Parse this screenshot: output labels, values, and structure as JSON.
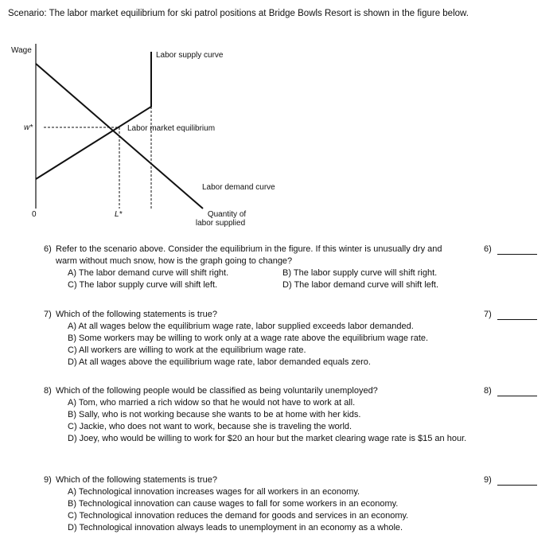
{
  "scenario": "Scenario: The labor market equilibrium for ski patrol positions at Bridge Bowls Resort is shown in the figure below.",
  "figure": {
    "y_axis_label": "Wage",
    "wage_label": "w*",
    "origin_label": "0",
    "quantity_label": "L*",
    "supply_label": "Labor supply curve",
    "equilibrium_label": "Labor market equilibrium",
    "demand_label": "Labor demand curve",
    "x_axis_label": [
      "Quantity of",
      "labor supplied"
    ]
  },
  "questions": [
    {
      "number": "6)",
      "stem": "Refer to the scenario above. Consider the equilibrium in the figure. If this winter is unusually dry and warm without much snow, how is the graph going to change?",
      "options": [
        "A) The labor demand curve will shift right.",
        "B) The labor supply curve will shift right.",
        "C) The labor supply curve will shift left.",
        "D) The labor demand curve will shift left."
      ],
      "answer_marker": "6)"
    },
    {
      "number": "7)",
      "stem": "Which of the following statements is true?",
      "options": [
        "A) At all wages below the equilibrium wage rate, labor supplied exceeds labor demanded.",
        "B) Some workers may be willing to work only at a wage rate above the equilibrium wage rate.",
        "C) All workers are willing to work at the equilibrium wage rate.",
        "D) At all wages above the equilibrium wage rate, labor demanded equals zero."
      ],
      "answer_marker": "7)"
    },
    {
      "number": "8)",
      "stem": "Which of the following people would be classified as being voluntarily unemployed?",
      "options": [
        "A) Tom, who married a rich widow so that he would not have to work at all.",
        "B) Sally, who is not working because she wants to be at home with her kids.",
        "C) Jackie, who does not want to work, because she is traveling the world.",
        "D) Joey, who would be willing to work for $20 an hour but the market clearing wage rate is $15 an hour."
      ],
      "answer_marker": "8)"
    },
    {
      "number": "9)",
      "stem": "Which of the following statements is true?",
      "options": [
        "A) Technological innovation increases wages for all workers in an economy.",
        "B) Technological innovation can cause wages to fall for some workers in an economy.",
        "C) Technological innovation reduces the demand for goods and services in an economy.",
        "D) Technological innovation always leads to unemployment in an economy as a whole."
      ],
      "answer_marker": "9)"
    }
  ]
}
